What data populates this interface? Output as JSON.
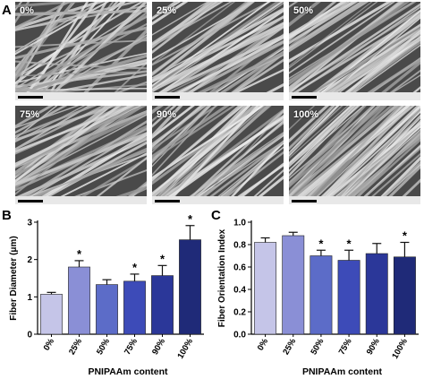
{
  "panels": {
    "a_label": "A",
    "b_label": "B",
    "c_label": "C"
  },
  "sem_images": [
    {
      "label": "0%"
    },
    {
      "label": "25%"
    },
    {
      "label": "50%"
    },
    {
      "label": "75%"
    },
    {
      "label": "90%"
    },
    {
      "label": "100%"
    }
  ],
  "colors": {
    "bars": [
      "#c5c5e8",
      "#8a8fd6",
      "#5c6cc8",
      "#3d4bb8",
      "#2b3799",
      "#1f2a78"
    ]
  },
  "chart_data": [
    {
      "type": "bar",
      "panel": "B",
      "categories": [
        "0%",
        "25%",
        "50%",
        "75%",
        "90%",
        "100%"
      ],
      "values": [
        1.07,
        1.8,
        1.33,
        1.42,
        1.57,
        2.53
      ],
      "errors": [
        0.05,
        0.17,
        0.13,
        0.19,
        0.27,
        0.38
      ],
      "significant": [
        false,
        true,
        false,
        true,
        true,
        true
      ],
      "marker": "*",
      "xlabel": "PNIPAAm content",
      "ylabel": "Fiber Diameter  (μm)",
      "ylim": [
        0,
        3
      ],
      "yticks": [
        0,
        1,
        2,
        3
      ]
    },
    {
      "type": "bar",
      "panel": "C",
      "categories": [
        "0%",
        "25%",
        "50%",
        "75%",
        "90%",
        "100%"
      ],
      "values": [
        0.82,
        0.88,
        0.7,
        0.66,
        0.72,
        0.69
      ],
      "errors": [
        0.04,
        0.03,
        0.05,
        0.09,
        0.09,
        0.13
      ],
      "significant": [
        false,
        false,
        true,
        true,
        false,
        true
      ],
      "marker": "*",
      "xlabel": "PNIPAAm content",
      "ylabel": "Fiber Orientation Index",
      "ylim": [
        0,
        1.0
      ],
      "yticks": [
        0.0,
        0.2,
        0.4,
        0.6,
        0.8,
        1.0
      ],
      "ytick_labels": [
        "0.0",
        "0.2",
        "0.4",
        "0.6",
        "0.8",
        "1.0"
      ]
    }
  ]
}
